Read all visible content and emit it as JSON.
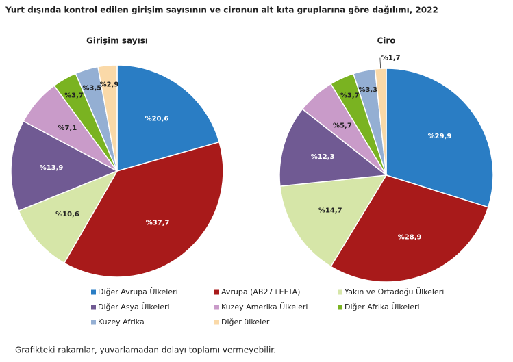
{
  "title": "Yurt dışında kontrol edilen girişim sayısının ve cironun alt kıta gruplarına göre dağılımı, 2022",
  "note": "Grafikteki rakamlar, yuvarlamadan dolayı toplamı vermeyebilir.",
  "chart_data": [
    {
      "type": "pie",
      "title": "Girişim sayısı",
      "categories": [
        "Diğer Avrupa Ülkeleri",
        "Avrupa (AB27+EFTA)",
        "Yakın ve Ortadoğu Ülkeleri",
        "Diğer Asya Ülkeleri",
        "Kuzey Amerika Ülkeleri",
        "Diğer Afrika Ülkeleri",
        "Kuzey Afrika",
        "Diğer ülkeler"
      ],
      "values": [
        20.6,
        37.7,
        10.6,
        13.9,
        7.1,
        3.7,
        3.5,
        2.9
      ],
      "value_labels": [
        "%20,6",
        "%37,7",
        "%10,6",
        "%13,9",
        "%7,1",
        "%3,7",
        "%3,5",
        "%2,9"
      ],
      "colors": [
        "#2a7dc4",
        "#a81a1a",
        "#d6e6a8",
        "#705a93",
        "#c99bc9",
        "#7ab321",
        "#94afd3",
        "#fad9a8"
      ]
    },
    {
      "type": "pie",
      "title": "Ciro",
      "categories": [
        "Diğer Avrupa Ülkeleri",
        "Avrupa (AB27+EFTA)",
        "Yakın ve Ortadoğu Ülkeleri",
        "Diğer Asya Ülkeleri",
        "Kuzey Amerika Ülkeleri",
        "Diğer Afrika Ülkeleri",
        "Kuzey Afrika",
        "Diğer ülkeler"
      ],
      "values": [
        29.9,
        28.9,
        14.7,
        12.3,
        5.7,
        3.7,
        3.3,
        1.7
      ],
      "value_labels": [
        "%29,9",
        "%28,9",
        "%14,7",
        "%12,3",
        "%5,7",
        "%3,7",
        "%3,3",
        "%1,7"
      ],
      "colors": [
        "#2a7dc4",
        "#a81a1a",
        "#d6e6a8",
        "#705a93",
        "#c99bc9",
        "#7ab321",
        "#94afd3",
        "#fad9a8"
      ]
    }
  ]
}
